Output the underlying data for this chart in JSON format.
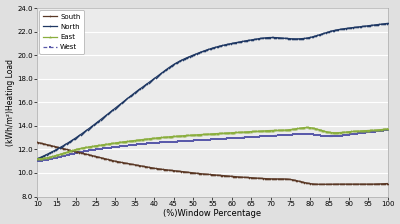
{
  "x": [
    10,
    15,
    20,
    25,
    30,
    35,
    40,
    45,
    50,
    55,
    60,
    65,
    70,
    75,
    80,
    85,
    90,
    95,
    100
  ],
  "south": [
    12.6,
    12.2,
    11.8,
    11.4,
    11.0,
    10.7,
    10.4,
    10.2,
    10.0,
    9.85,
    9.7,
    9.6,
    9.5,
    9.45,
    9.1,
    9.05,
    9.05,
    9.05,
    9.1
  ],
  "north": [
    11.2,
    12.0,
    13.0,
    14.2,
    15.5,
    16.8,
    18.0,
    19.2,
    20.0,
    20.6,
    21.0,
    21.3,
    21.5,
    21.4,
    21.5,
    22.0,
    22.3,
    22.5,
    22.7
  ],
  "east": [
    11.2,
    11.5,
    12.0,
    12.3,
    12.55,
    12.75,
    12.95,
    13.1,
    13.22,
    13.32,
    13.42,
    13.52,
    13.6,
    13.68,
    13.85,
    13.45,
    13.5,
    13.6,
    13.75
  ],
  "west": [
    11.0,
    11.3,
    11.7,
    12.0,
    12.2,
    12.4,
    12.55,
    12.65,
    12.75,
    12.85,
    12.95,
    13.05,
    13.15,
    13.25,
    13.3,
    13.1,
    13.25,
    13.45,
    13.65
  ],
  "south_color": "#5a3825",
  "north_color": "#1f3864",
  "east_color": "#8aae3d",
  "west_color": "#5a5aaa",
  "ylabel": "(kWh/m²)Heating Load",
  "xlabel": "(%)Window Percentage",
  "ylim": [
    8.0,
    24.0
  ],
  "yticks": [
    8.0,
    10.0,
    12.0,
    14.0,
    16.0,
    18.0,
    20.0,
    22.0,
    24.0
  ],
  "xticks": [
    10,
    15,
    20,
    25,
    30,
    35,
    40,
    45,
    50,
    55,
    60,
    65,
    70,
    75,
    80,
    85,
    90,
    95,
    100
  ],
  "bg_color": "#e0e0e0",
  "plot_bg_color": "#ebebeb",
  "legend_labels": [
    "South",
    "North",
    "East",
    "West"
  ]
}
